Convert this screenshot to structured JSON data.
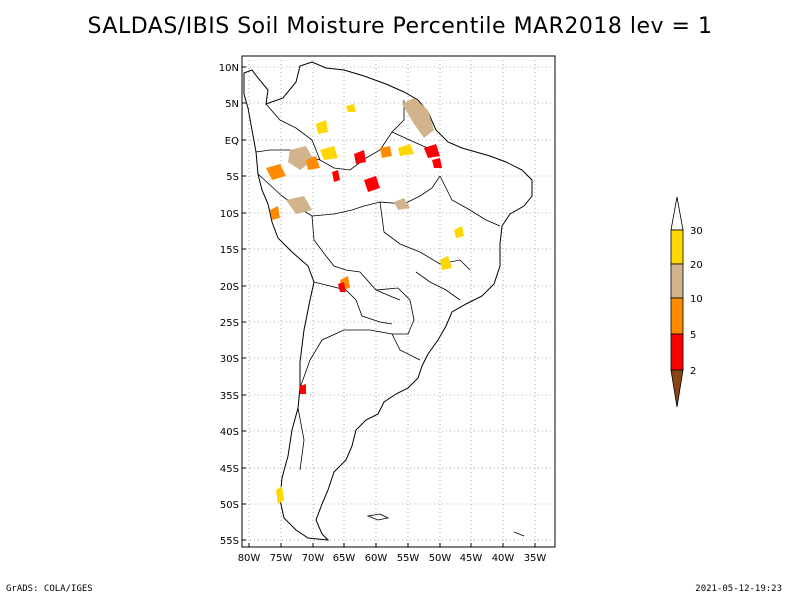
{
  "title": "SALDAS/IBIS Soil Moisture Percentile MAR2018 lev = 1",
  "map": {
    "lat_ticks": [
      "10N",
      "5N",
      "EQ",
      "5S",
      "10S",
      "15S",
      "20S",
      "25S",
      "30S",
      "35S",
      "40S",
      "45S",
      "50S",
      "55S"
    ],
    "lon_ticks": [
      "80W",
      "75W",
      "70W",
      "65W",
      "60W",
      "55W",
      "50W",
      "45W",
      "40W",
      "35W"
    ],
    "lon_range": [
      -81,
      -32
    ],
    "lat_range": [
      -56,
      12
    ],
    "grid": "dotted"
  },
  "legend": {
    "levels": [
      "30",
      "20",
      "10",
      "5",
      "2"
    ],
    "colors": {
      "gt30": "#ffffff",
      "20-30": "#ffd700",
      "10-20": "#d2b48c",
      "5-10": "#ff8c00",
      "2-5": "#ff0000",
      "lt2": "#8b4513"
    }
  },
  "footer": {
    "left": "GrADS: COLA/IGES",
    "right": "2021-05-12-19:23"
  }
}
